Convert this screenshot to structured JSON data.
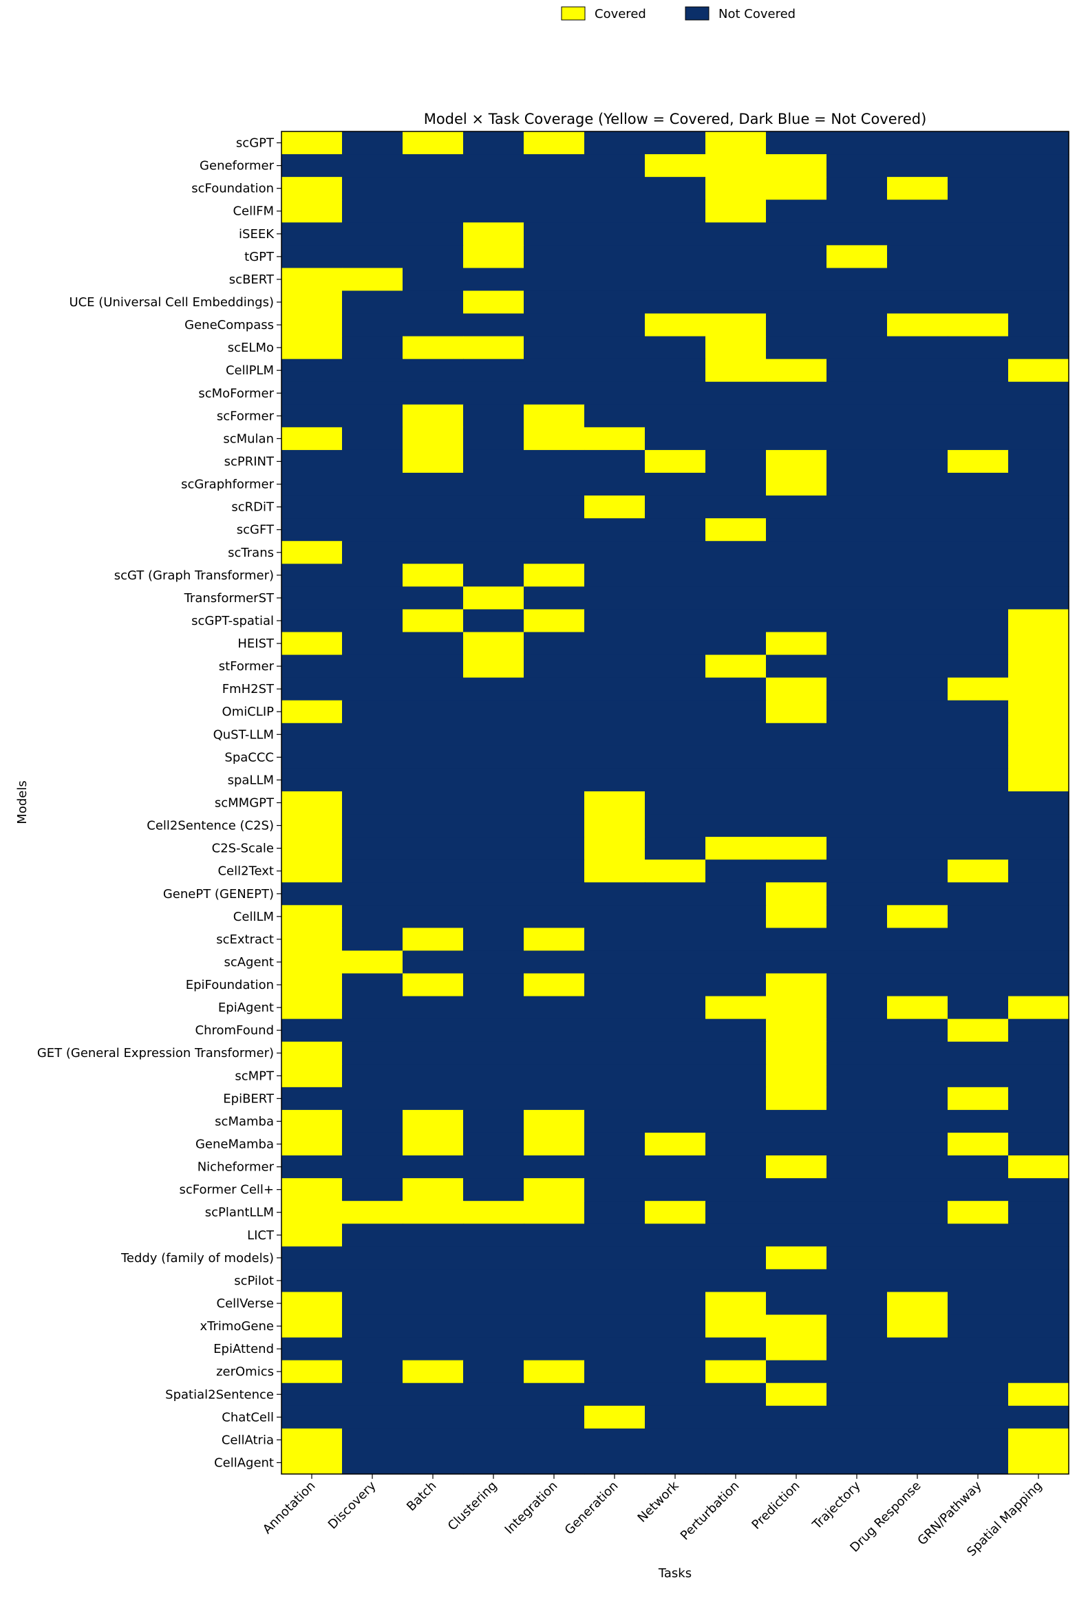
{
  "chart_data": {
    "type": "heatmap",
    "title": "Model × Task Coverage (Yellow = Covered, Dark Blue = Not Covered)",
    "xlabel": "Tasks",
    "ylabel": "Models",
    "legend": {
      "placement": "top-center",
      "entries": [
        {
          "label": "Covered",
          "color": "#ffff00"
        },
        {
          "label": "Not Covered",
          "color": "#0b2f69"
        }
      ]
    },
    "colors": {
      "covered": "#ffff00",
      "not_covered": "#0b2f69"
    },
    "tasks": [
      "Annotation",
      "Discovery",
      "Batch",
      "Clustering",
      "Integration",
      "Generation",
      "Network",
      "Perturbation",
      "Prediction",
      "Trajectory",
      "Drug Response",
      "GRN/Pathway",
      "Spatial Mapping"
    ],
    "models": [
      "scGPT",
      "Geneformer",
      "scFoundation",
      "CellFM",
      "iSEEK",
      "tGPT",
      "scBERT",
      "UCE (Universal Cell Embeddings)",
      "GeneCompass",
      "scELMo",
      "CellPLM",
      "scMoFormer",
      "scFormer",
      "scMulan",
      "scPRINT",
      "scGraphformer",
      "scRDiT",
      "scGFT",
      "scTrans",
      "scGT (Graph Transformer)",
      "TransformerST",
      "scGPT-spatial",
      "HEIST",
      "stFormer",
      "FmH2ST",
      "OmiCLIP",
      "QuST-LLM",
      "SpaCCC",
      "spaLLM",
      "scMMGPT",
      "Cell2Sentence (C2S)",
      "C2S-Scale",
      "Cell2Text",
      "GenePT (GENEPT)",
      "CellLM",
      "scExtract",
      "scAgent",
      "EpiFoundation",
      "EpiAgent",
      "ChromFound",
      "GET (General Expression Transformer)",
      "scMPT",
      "EpiBERT",
      "scMamba",
      "GeneMamba",
      "Nicheformer",
      "scFormer Cell+",
      "scPlantLLM",
      "LICT",
      "Teddy (family of models)",
      "scPilot",
      "CellVerse",
      "xTrimoGene",
      "EpiAttend",
      "zerOmics",
      "Spatial2Sentence",
      "ChatCell",
      "CellAtria",
      "CellAgent"
    ],
    "covered_task_indices": [
      [
        0,
        2,
        4,
        7
      ],
      [
        6,
        7,
        8
      ],
      [
        0,
        7,
        8,
        10
      ],
      [
        0,
        7
      ],
      [
        3
      ],
      [
        3,
        9
      ],
      [
        0,
        1
      ],
      [
        0,
        3
      ],
      [
        0,
        6,
        7,
        10,
        11
      ],
      [
        0,
        2,
        3,
        7
      ],
      [
        7,
        8,
        12
      ],
      [],
      [
        2,
        4
      ],
      [
        0,
        2,
        4,
        5
      ],
      [
        2,
        6,
        8,
        11
      ],
      [
        8
      ],
      [
        5
      ],
      [
        7
      ],
      [
        0
      ],
      [
        2,
        4
      ],
      [
        3
      ],
      [
        2,
        4,
        12
      ],
      [
        0,
        3,
        8,
        12
      ],
      [
        3,
        7,
        12
      ],
      [
        8,
        11,
        12
      ],
      [
        0,
        8,
        12
      ],
      [
        12
      ],
      [
        12
      ],
      [
        12
      ],
      [
        0,
        5
      ],
      [
        0,
        5
      ],
      [
        0,
        5,
        7,
        8
      ],
      [
        0,
        5,
        6,
        11
      ],
      [
        8
      ],
      [
        0,
        8,
        10
      ],
      [
        0,
        2,
        4
      ],
      [
        0,
        1
      ],
      [
        0,
        2,
        4,
        8
      ],
      [
        0,
        7,
        8,
        10,
        12
      ],
      [
        8,
        11
      ],
      [
        0,
        8
      ],
      [
        0,
        8
      ],
      [
        8,
        11
      ],
      [
        0,
        2,
        4
      ],
      [
        0,
        2,
        4,
        6,
        11
      ],
      [
        8,
        12
      ],
      [
        0,
        2,
        4
      ],
      [
        0,
        1,
        2,
        3,
        4,
        6,
        11
      ],
      [
        0
      ],
      [
        8
      ],
      [],
      [
        0,
        7,
        10
      ],
      [
        0,
        7,
        8,
        10
      ],
      [
        8
      ],
      [
        0,
        2,
        4,
        7
      ],
      [
        8,
        12
      ],
      [
        5
      ],
      [
        0,
        12
      ],
      [
        0,
        12
      ]
    ]
  }
}
